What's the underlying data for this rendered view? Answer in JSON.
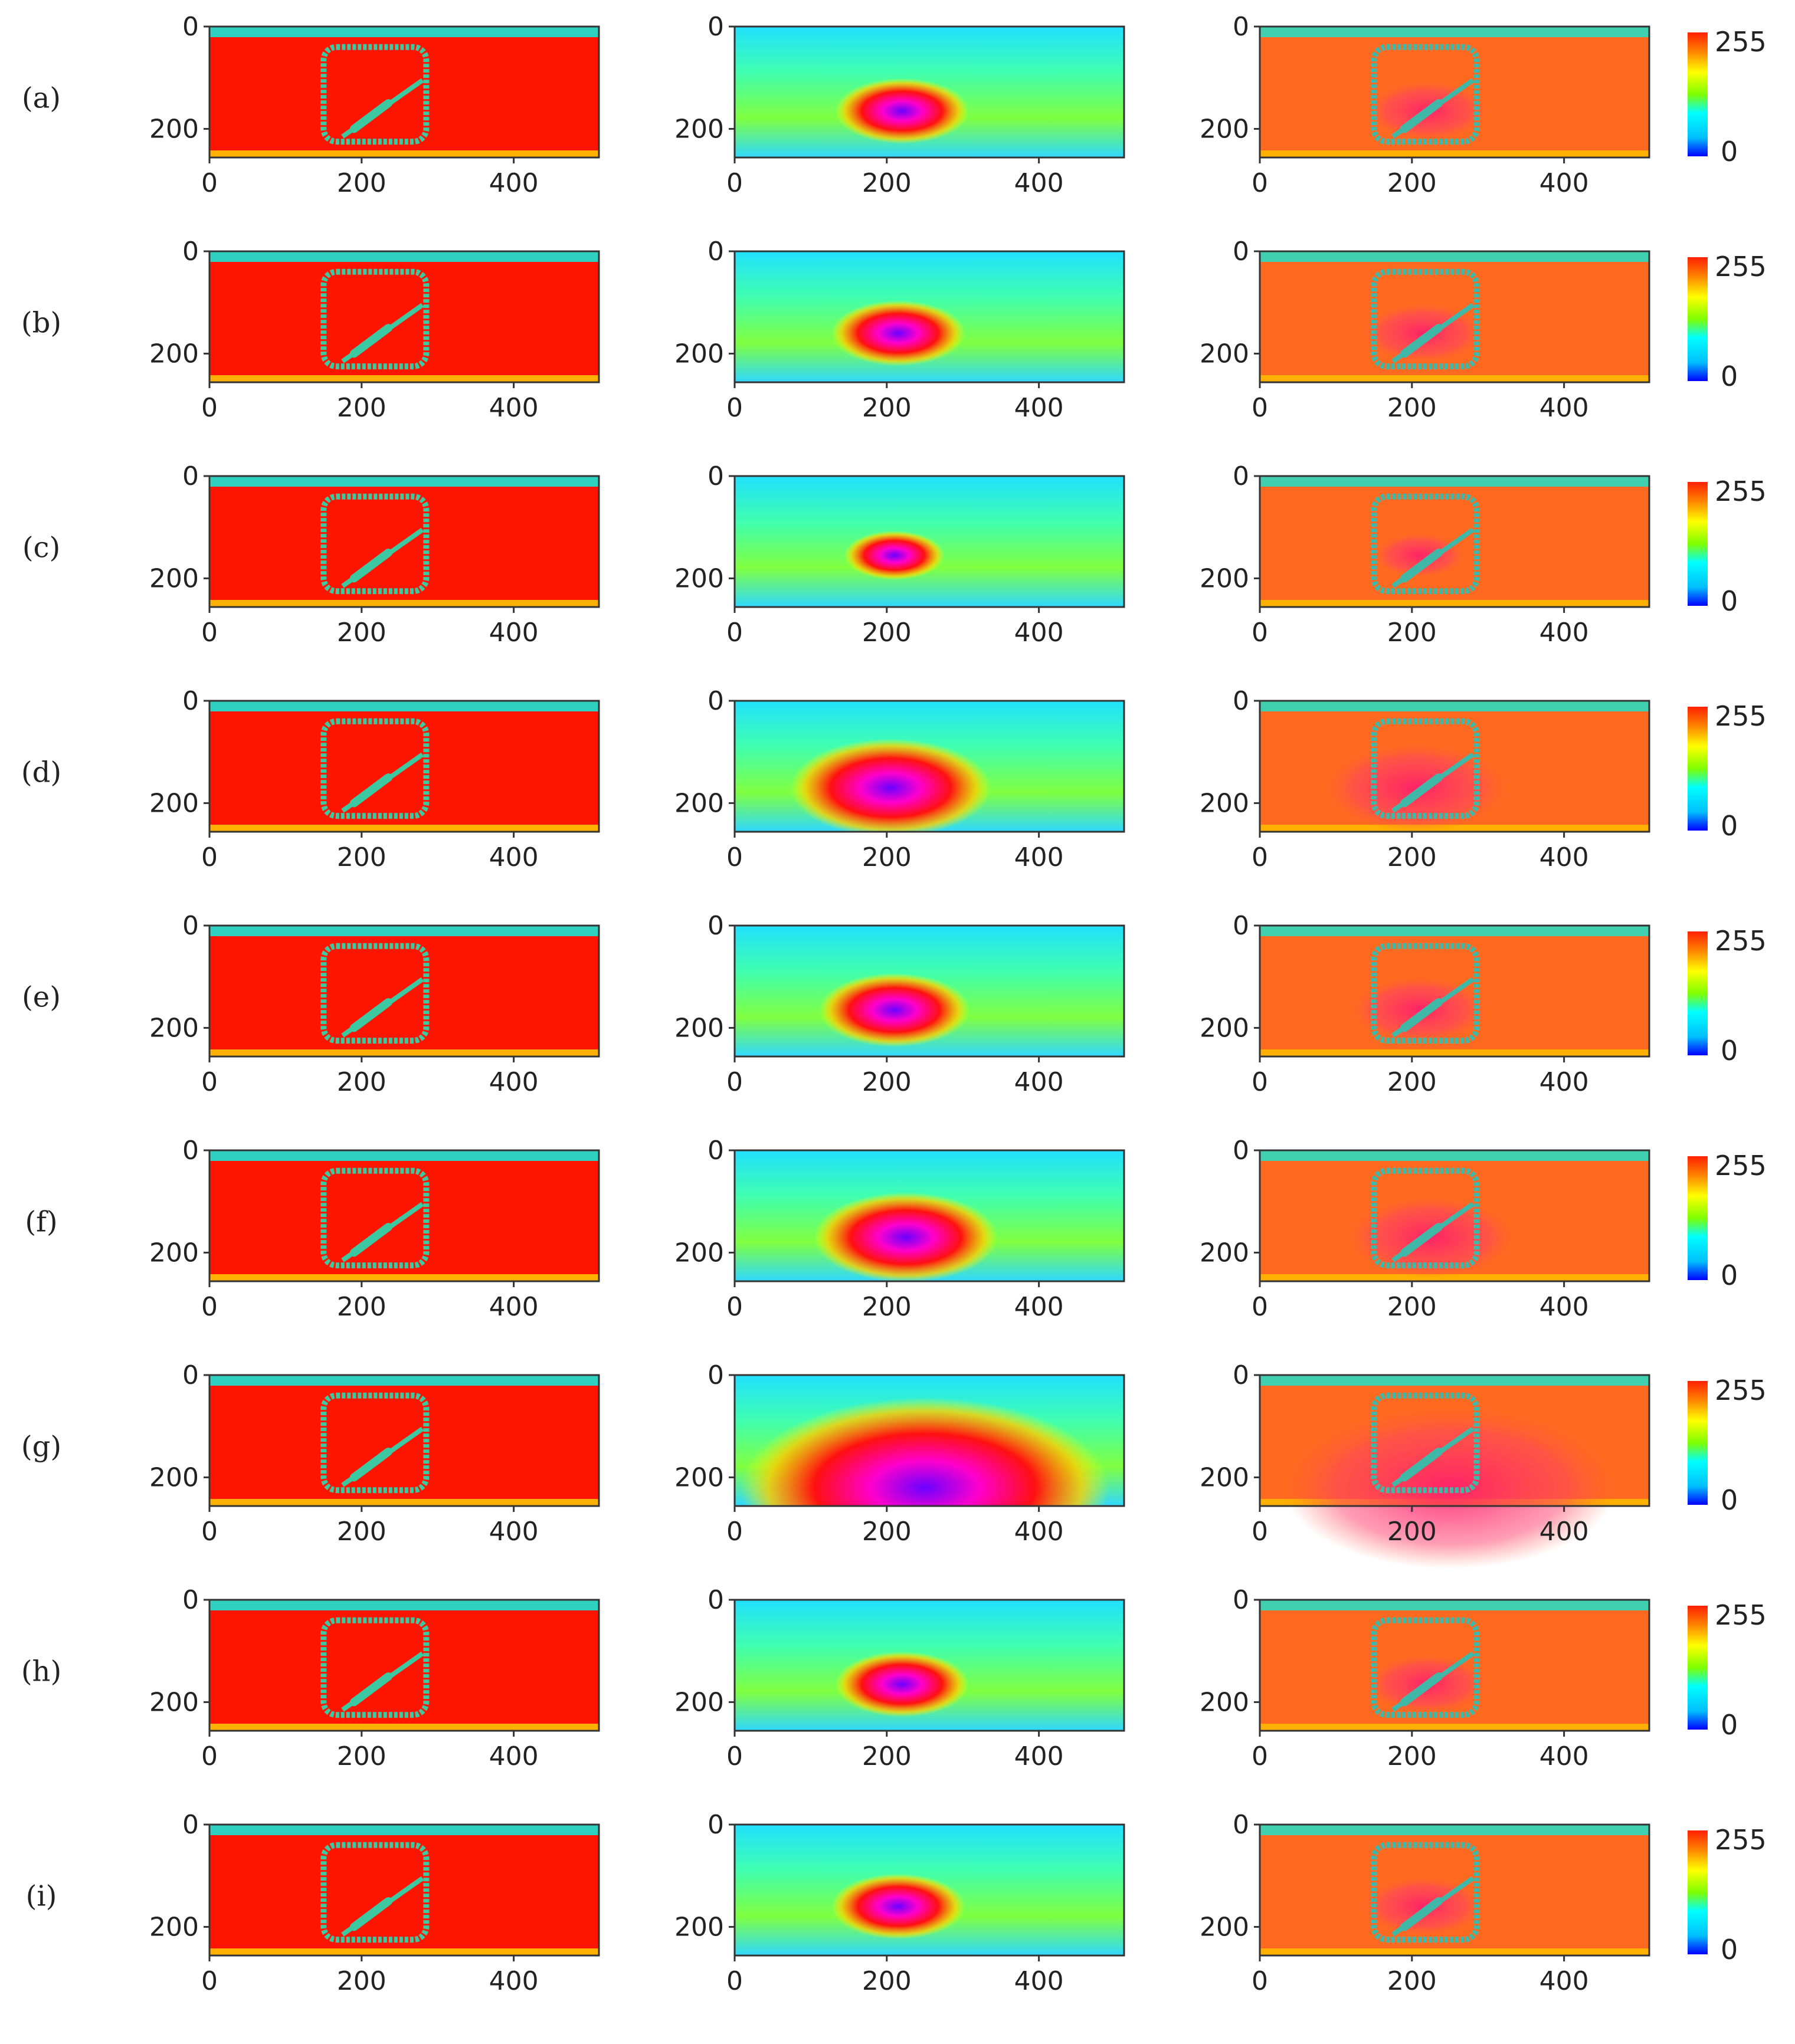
{
  "chart_data": {
    "type": "heatmap",
    "layout": "9 rows x 3 panels, colorbar at right of each row",
    "colormap": "jet",
    "colorbar": {
      "min": 0,
      "max": 255,
      "tick_labels": [
        "255",
        "0"
      ]
    },
    "x_ticks": [
      "0",
      "200",
      "400"
    ],
    "y_ticks": [
      "0",
      "200"
    ],
    "image_extent": {
      "x": [
        0,
        512
      ],
      "y": [
        0,
        256
      ]
    },
    "grid": false,
    "rows": [
      {
        "label": "(a)",
        "attention_center": [
          220,
          165
        ],
        "attention_radius": 40
      },
      {
        "label": "(b)",
        "attention_center": [
          215,
          160
        ],
        "attention_radius": 40
      },
      {
        "label": "(c)",
        "attention_center": [
          210,
          155
        ],
        "attention_radius": 30
      },
      {
        "label": "(d)",
        "attention_center": [
          205,
          170
        ],
        "attention_radius": 60
      },
      {
        "label": "(e)",
        "attention_center": [
          210,
          165
        ],
        "attention_radius": 45
      },
      {
        "label": "(f)",
        "attention_center": [
          225,
          170
        ],
        "attention_radius": 55
      },
      {
        "label": "(g)",
        "attention_center": [
          250,
          220
        ],
        "attention_radius": 110
      },
      {
        "label": "(h)",
        "attention_center": [
          220,
          165
        ],
        "attention_radius": 40
      },
      {
        "label": "(i)",
        "attention_center": [
          215,
          160
        ],
        "attention_radius": 40
      }
    ]
  }
}
